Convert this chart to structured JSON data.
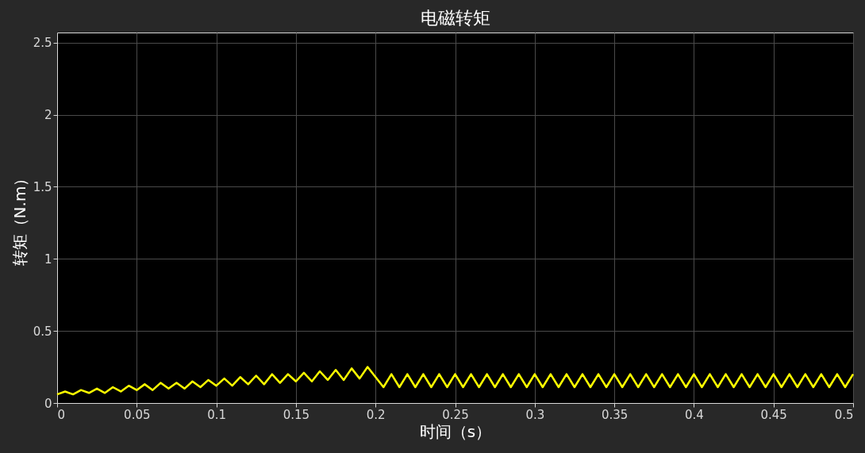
{
  "chart_data": {
    "type": "line",
    "title": "电磁转矩",
    "xlabel": "时间（s）",
    "ylabel": "转矩（N.m）",
    "x": [
      0,
      0.005,
      0.01,
      0.015,
      0.02,
      0.025,
      0.03,
      0.035,
      0.04,
      0.045,
      0.05,
      0.055,
      0.06,
      0.065,
      0.07,
      0.075,
      0.08,
      0.085,
      0.09,
      0.095,
      0.1,
      0.105,
      0.11,
      0.115,
      0.12,
      0.125,
      0.13,
      0.135,
      0.14,
      0.145,
      0.15,
      0.155,
      0.16,
      0.165,
      0.17,
      0.175,
      0.18,
      0.185,
      0.19,
      0.195,
      0.2,
      0.205,
      0.21,
      0.215,
      0.22,
      0.225,
      0.23,
      0.235,
      0.24,
      0.245,
      0.25,
      0.255,
      0.26,
      0.265,
      0.27,
      0.275,
      0.28,
      0.285,
      0.29,
      0.295,
      0.3,
      0.305,
      0.31,
      0.315,
      0.32,
      0.325,
      0.33,
      0.335,
      0.34,
      0.345,
      0.35,
      0.355,
      0.36,
      0.365,
      0.37,
      0.375,
      0.38,
      0.385,
      0.39,
      0.395,
      0.4,
      0.405,
      0.41,
      0.415,
      0.42,
      0.425,
      0.43,
      0.435,
      0.44,
      0.445,
      0.45,
      0.455,
      0.46,
      0.465,
      0.47,
      0.475,
      0.48,
      0.485,
      0.49,
      0.495,
      0.5
    ],
    "series": [
      {
        "color": "#ffff00",
        "values": [
          0.06,
          0.08,
          0.06,
          0.09,
          0.07,
          0.1,
          0.07,
          0.11,
          0.08,
          0.12,
          0.09,
          0.13,
          0.09,
          0.14,
          0.1,
          0.14,
          0.1,
          0.15,
          0.11,
          0.16,
          0.12,
          0.17,
          0.12,
          0.18,
          0.13,
          0.19,
          0.13,
          0.2,
          0.14,
          0.2,
          0.15,
          0.21,
          0.15,
          0.22,
          0.16,
          0.23,
          0.16,
          0.24,
          0.17,
          0.25,
          0.18,
          0.11,
          0.2,
          0.11,
          0.2,
          0.11,
          0.2,
          0.11,
          0.2,
          0.11,
          0.2,
          0.11,
          0.2,
          0.11,
          0.2,
          0.11,
          0.2,
          0.11,
          0.2,
          0.11,
          0.2,
          0.11,
          0.2,
          0.11,
          0.2,
          0.11,
          0.2,
          0.11,
          0.2,
          0.11,
          0.2,
          0.11,
          0.2,
          0.11,
          0.2,
          0.11,
          0.2,
          0.11,
          0.2,
          0.11,
          0.2,
          0.11,
          0.2,
          0.11,
          0.2,
          0.11,
          0.2,
          0.11,
          0.2,
          0.11,
          0.2,
          0.11,
          0.2,
          0.11,
          0.2,
          0.11,
          0.2,
          0.11,
          0.2,
          0.11,
          0.2
        ]
      }
    ],
    "xlim": [
      0,
      0.5
    ],
    "xticks": [
      0,
      0.05,
      0.1,
      0.15,
      0.2,
      0.25,
      0.3,
      0.35,
      0.4,
      0.45,
      0.5
    ],
    "ylim": [
      0,
      2.57
    ],
    "yticks": [
      0,
      0.5,
      1,
      1.5,
      2,
      2.5
    ],
    "grid": true,
    "legend": false,
    "line_style": "solid",
    "marker": "none"
  }
}
